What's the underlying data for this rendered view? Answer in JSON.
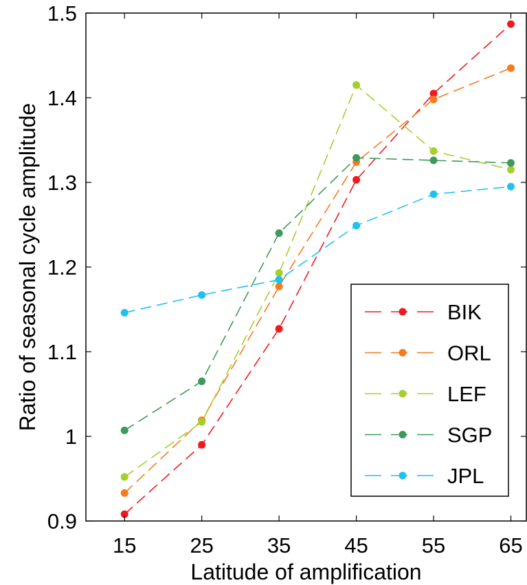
{
  "chart_data": {
    "type": "line",
    "title": "",
    "xlabel": "Latitude of amplification",
    "ylabel": "Ratio of seasonal cycle amplitude",
    "x": [
      15,
      25,
      35,
      45,
      55,
      65
    ],
    "xlim": [
      10,
      67
    ],
    "ylim": [
      0.9,
      1.5
    ],
    "xticks": [
      "15",
      "25",
      "35",
      "45",
      "55",
      "65"
    ],
    "yticks": [
      "0.9",
      "1",
      "1.1",
      "1.2",
      "1.3",
      "1.4",
      "1.5"
    ],
    "grid": false,
    "legend_position": "lower-right",
    "line_style": "dashed",
    "series": [
      {
        "name": "BIK",
        "color": "#f0191e",
        "values": [
          0.908,
          0.99,
          1.127,
          1.303,
          1.405,
          1.487
        ]
      },
      {
        "name": "ORL",
        "color": "#f87a1e",
        "values": [
          0.933,
          1.019,
          1.177,
          1.324,
          1.398,
          1.435
        ]
      },
      {
        "name": "LEF",
        "color": "#a6cf2c",
        "values": [
          0.952,
          1.017,
          1.193,
          1.415,
          1.337,
          1.315
        ]
      },
      {
        "name": "SGP",
        "color": "#3d9a5c",
        "values": [
          1.007,
          1.065,
          1.24,
          1.329,
          1.326,
          1.323
        ]
      },
      {
        "name": "JPL",
        "color": "#1fc2ef",
        "values": [
          1.146,
          1.167,
          1.185,
          1.249,
          1.286,
          1.295
        ]
      }
    ]
  }
}
